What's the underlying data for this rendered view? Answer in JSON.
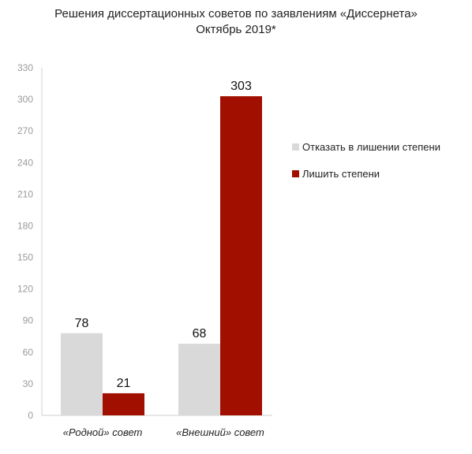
{
  "title_line1": "Решения диссертационных советов по заявлениям «Диссернета»",
  "title_line2": "Октябрь 2019*",
  "chart_data": {
    "type": "bar",
    "title": "Решения диссертационных советов по заявлениям «Диссернета» Октябрь 2019*",
    "categories": [
      "«Родной» совет",
      "«Внешний» совет"
    ],
    "series": [
      {
        "name": "Отказать в лишении степени",
        "values": [
          78,
          68
        ],
        "color": "#d9d9d9"
      },
      {
        "name": "Лишить степени",
        "values": [
          21,
          303
        ],
        "color": "#a00f00"
      }
    ],
    "yticks": [
      0,
      30,
      60,
      90,
      120,
      150,
      180,
      210,
      240,
      270,
      300,
      330
    ],
    "ylim": [
      0,
      330
    ],
    "grid": false,
    "legend_position": "right",
    "xlabel": "",
    "ylabel": ""
  }
}
